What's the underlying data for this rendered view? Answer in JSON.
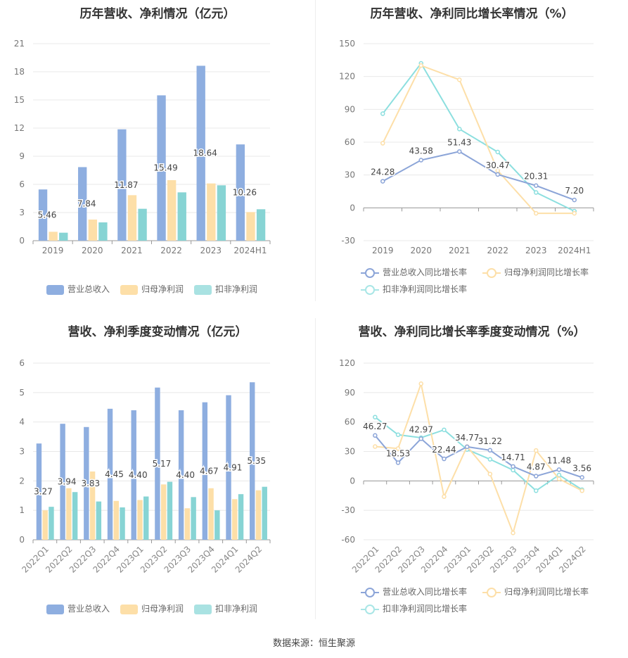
{
  "source": "数据来源：恒生聚源",
  "colors": {
    "rev": "#8eaee0",
    "net": "#fddfa8",
    "deduct": "#87d4d4",
    "revLine": "#8ca5d8",
    "netLine": "#fddfa8",
    "deductLine": "#8cdfdf"
  },
  "legend": {
    "rev_bar": "营业总收入",
    "net_bar": "归母净利润",
    "deduct_bar": "扣非净利润",
    "rev_line": "营业总收入同比增长率",
    "net_line": "归母净利润同比增长率",
    "deduct_line": "扣非净利润同比增长率"
  },
  "chart_data": [
    {
      "id": "annual_bar",
      "type": "bar",
      "title": "历年营收、净利情况（亿元）",
      "categories": [
        "2019",
        "2020",
        "2021",
        "2022",
        "2023",
        "2024H1"
      ],
      "ylim": [
        0,
        21
      ],
      "yticks": [
        0,
        3,
        6,
        9,
        12,
        15,
        18,
        21
      ],
      "series": [
        {
          "name": "营业总收入",
          "values": [
            5.46,
            7.84,
            11.87,
            15.49,
            18.64,
            10.26
          ],
          "labels": [
            "5.46",
            "7.84",
            "11.87",
            "15.49",
            "18.64",
            "10.26"
          ]
        },
        {
          "name": "归母净利润",
          "values": [
            0.95,
            2.25,
            4.85,
            6.45,
            6.1,
            3.05
          ]
        },
        {
          "name": "扣非净利润",
          "values": [
            0.85,
            1.95,
            3.4,
            5.15,
            5.9,
            3.35
          ]
        }
      ]
    },
    {
      "id": "annual_line",
      "type": "line",
      "title": "历年营收、净利同比增长率情况（%）",
      "categories": [
        "2019",
        "2020",
        "2021",
        "2022",
        "2023",
        "2024H1"
      ],
      "ylim": [
        -30,
        150
      ],
      "yticks": [
        -30,
        0,
        30,
        60,
        90,
        120,
        150
      ],
      "series": [
        {
          "name": "营业总收入同比增长率",
          "values": [
            24.28,
            43.58,
            51.43,
            30.47,
            20.31,
            7.2
          ],
          "labels": [
            "24.28",
            "43.58",
            "51.43",
            "30.47",
            "20.31",
            "7.20"
          ]
        },
        {
          "name": "归母净利润同比增长率",
          "values": [
            59,
            130,
            117,
            34,
            -5,
            -5
          ]
        },
        {
          "name": "扣非净利润同比增长率",
          "values": [
            86,
            132,
            72,
            51,
            14,
            -3
          ]
        }
      ]
    },
    {
      "id": "quarter_bar",
      "type": "bar",
      "title": "营收、净利季度变动情况（亿元）",
      "categories": [
        "2022Q1",
        "2022Q2",
        "2022Q3",
        "2022Q4",
        "2023Q1",
        "2023Q2",
        "2023Q3",
        "2023Q4",
        "2024Q1",
        "2024Q2"
      ],
      "ylim": [
        0,
        6
      ],
      "yticks": [
        0,
        1,
        2,
        3,
        4,
        5,
        6
      ],
      "series": [
        {
          "name": "营业总收入",
          "values": [
            3.27,
            3.94,
            3.83,
            4.45,
            4.4,
            5.17,
            4.4,
            4.67,
            4.91,
            5.35
          ],
          "labels": [
            "3.27",
            "3.94",
            "3.83",
            "4.45",
            "4.40",
            "5.17",
            "4.40",
            "4.67",
            "4.91",
            "5.35"
          ]
        },
        {
          "name": "归母净利润",
          "values": [
            1.0,
            1.75,
            2.32,
            1.32,
            1.35,
            1.88,
            1.07,
            1.75,
            1.38,
            1.68
          ]
        },
        {
          "name": "扣非净利润",
          "values": [
            1.12,
            1.62,
            1.3,
            1.1,
            1.47,
            1.97,
            1.45,
            1.0,
            1.55,
            1.8
          ]
        }
      ]
    },
    {
      "id": "quarter_line",
      "type": "line",
      "title": "营收、净利同比增长率季度变动情况（%）",
      "categories": [
        "2022Q1",
        "2022Q2",
        "2022Q3",
        "2022Q4",
        "2023Q1",
        "2023Q2",
        "2023Q3",
        "2023Q4",
        "2024Q1",
        "2024Q2"
      ],
      "ylim": [
        -60,
        120
      ],
      "yticks": [
        -60,
        -30,
        0,
        30,
        60,
        90,
        120
      ],
      "series": [
        {
          "name": "营业总收入同比增长率",
          "values": [
            46.27,
            18.53,
            42.97,
            22.44,
            34.77,
            31.22,
            14.71,
            4.87,
            11.48,
            3.56
          ],
          "labels": [
            "46.27",
            "18.53",
            "42.97",
            "22.44",
            "34.77",
            "31.22",
            "14.71",
            "4.87",
            "11.48",
            "3.56"
          ]
        },
        {
          "name": "归母净利润同比增长率",
          "values": [
            35,
            33,
            99,
            -16,
            35,
            7,
            -53,
            31,
            2,
            -10
          ]
        },
        {
          "name": "扣非净利润同比增长率",
          "values": [
            65,
            47,
            44,
            52,
            32,
            22,
            11,
            -10,
            6,
            -9
          ]
        }
      ]
    }
  ]
}
